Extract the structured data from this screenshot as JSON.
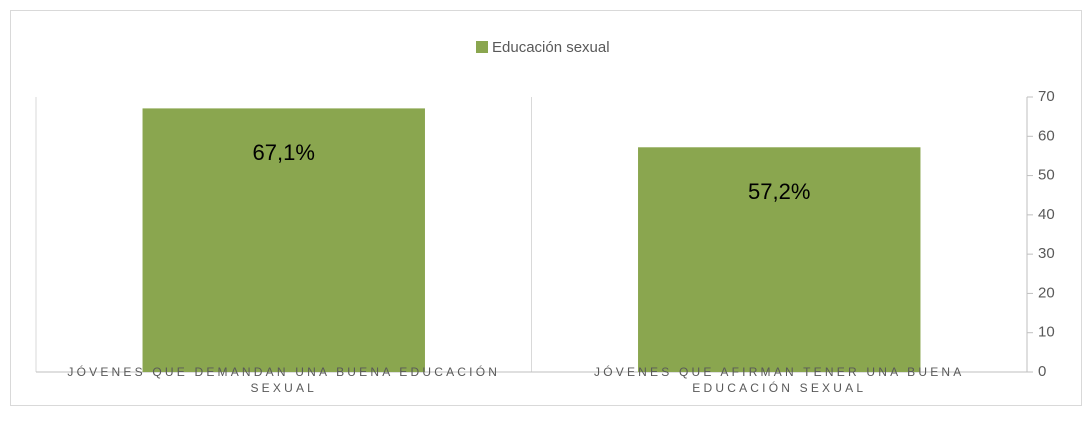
{
  "chart_data": {
    "type": "bar",
    "categories": [
      "JÓVENES QUE DEMANDAN UNA BUENA EDUCACIÓN SEXUAL",
      "JÓVENES QUE AFIRMAN TENER UNA BUENA EDUCACIÓN SEXUAL"
    ],
    "series": [
      {
        "name": "Educación sexual",
        "color": "#8aa64f",
        "values": [
          67.1,
          57.2
        ],
        "value_labels": [
          "67,1%",
          "57,2%"
        ]
      }
    ],
    "ylim": [
      0,
      70
    ],
    "yticks": [
      0,
      10,
      20,
      30,
      40,
      50,
      60,
      70
    ],
    "legend": "top",
    "y_axis_side": "right"
  }
}
